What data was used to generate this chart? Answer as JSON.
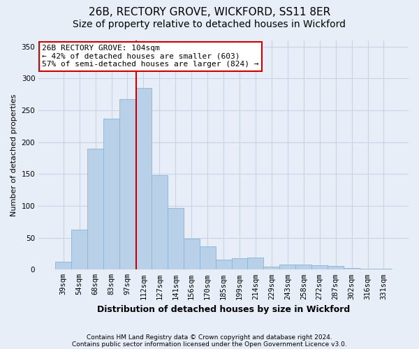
{
  "title": "26B, RECTORY GROVE, WICKFORD, SS11 8ER",
  "subtitle": "Size of property relative to detached houses in Wickford",
  "xlabel": "Distribution of detached houses by size in Wickford",
  "ylabel": "Number of detached properties",
  "categories": [
    "39sqm",
    "54sqm",
    "68sqm",
    "83sqm",
    "97sqm",
    "112sqm",
    "127sqm",
    "141sqm",
    "156sqm",
    "170sqm",
    "185sqm",
    "199sqm",
    "214sqm",
    "229sqm",
    "243sqm",
    "258sqm",
    "272sqm",
    "287sqm",
    "302sqm",
    "316sqm",
    "331sqm"
  ],
  "values": [
    12,
    63,
    190,
    237,
    268,
    285,
    148,
    97,
    49,
    36,
    16,
    18,
    19,
    5,
    8,
    8,
    7,
    6,
    2,
    1,
    1
  ],
  "bar_color": "#b8d0e8",
  "bar_edge_color": "#8ab4d4",
  "grid_color": "#c8d4e4",
  "background_color": "#e8eef8",
  "vline_x": 4.55,
  "vline_color": "#cc0000",
  "annotation_text": "26B RECTORY GROVE: 104sqm\n← 42% of detached houses are smaller (603)\n57% of semi-detached houses are larger (824) →",
  "annotation_box_color": "#ffffff",
  "annotation_box_edge": "#cc0000",
  "ylim": [
    0,
    360
  ],
  "yticks": [
    0,
    50,
    100,
    150,
    200,
    250,
    300,
    350
  ],
  "footnote1": "Contains HM Land Registry data © Crown copyright and database right 2024.",
  "footnote2": "Contains public sector information licensed under the Open Government Licence v3.0.",
  "title_fontsize": 11,
  "subtitle_fontsize": 10,
  "xlabel_fontsize": 9,
  "ylabel_fontsize": 8,
  "tick_fontsize": 7.5,
  "annotation_fontsize": 8,
  "footnote_fontsize": 6.5
}
